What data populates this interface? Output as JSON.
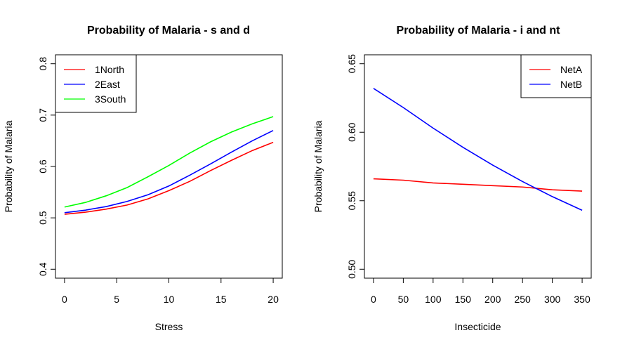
{
  "chart_data": [
    {
      "type": "line",
      "title": "Probability of Malaria - s and d",
      "xlabel": "Stress",
      "ylabel": "Probability of Malaria",
      "xlim": [
        0,
        20
      ],
      "ylim": [
        0.4,
        0.8
      ],
      "xticks": [
        "0",
        "5",
        "10",
        "15",
        "20"
      ],
      "yticks": [
        "0.4",
        "0.5",
        "0.6",
        "0.7",
        "0.8"
      ],
      "legend_position": "top-left",
      "x": [
        0,
        2,
        4,
        6,
        8,
        10,
        12,
        14,
        16,
        18,
        20
      ],
      "series": [
        {
          "name": "1North",
          "color": "#ff0000",
          "values": [
            0.507,
            0.511,
            0.517,
            0.525,
            0.537,
            0.553,
            0.571,
            0.592,
            0.612,
            0.631,
            0.647
          ]
        },
        {
          "name": "2East",
          "color": "#0000ff",
          "values": [
            0.51,
            0.515,
            0.522,
            0.532,
            0.545,
            0.562,
            0.583,
            0.605,
            0.628,
            0.65,
            0.67
          ]
        },
        {
          "name": "3South",
          "color": "#00ff00",
          "values": [
            0.521,
            0.53,
            0.543,
            0.559,
            0.58,
            0.602,
            0.626,
            0.648,
            0.667,
            0.683,
            0.697
          ]
        }
      ]
    },
    {
      "type": "line",
      "title": "Probability of Malaria - i and nt",
      "xlabel": "Insecticide",
      "ylabel": "Probability of Malaria",
      "xlim": [
        0,
        350
      ],
      "ylim": [
        0.5,
        0.65
      ],
      "xticks": [
        "0",
        "50",
        "100",
        "150",
        "200",
        "250",
        "300",
        "350"
      ],
      "yticks": [
        "0.50",
        "0.55",
        "0.60",
        "0.65"
      ],
      "legend_position": "top-right",
      "x": [
        0,
        50,
        100,
        150,
        200,
        250,
        300,
        350
      ],
      "series": [
        {
          "name": "NetA",
          "color": "#ff0000",
          "values": [
            0.566,
            0.565,
            0.563,
            0.562,
            0.561,
            0.56,
            0.558,
            0.557
          ]
        },
        {
          "name": "NetB",
          "color": "#0000ff",
          "values": [
            0.632,
            0.618,
            0.603,
            0.589,
            0.576,
            0.564,
            0.553,
            0.543
          ]
        }
      ]
    }
  ]
}
